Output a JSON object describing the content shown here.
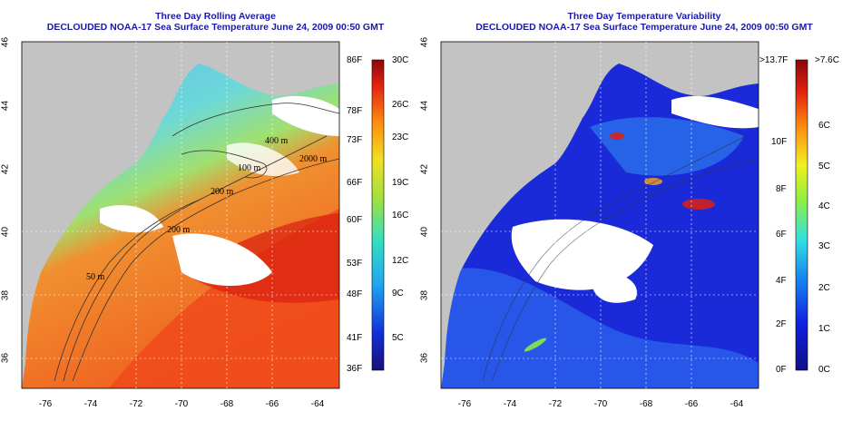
{
  "left": {
    "title1": "Three Day Rolling Average",
    "title2": "DECLOUDED NOAA-17 Sea Surface Temperature June 24, 2009 00:50 GMT",
    "lat_ticks": [
      "46",
      "44",
      "42",
      "40",
      "38",
      "36"
    ],
    "lon_ticks": [
      "-76",
      "-74",
      "-72",
      "-70",
      "-68",
      "-66",
      "-64"
    ],
    "contours": [
      "400 m",
      "100 m",
      "2000 m",
      "200 m",
      "200 m",
      "50 m"
    ],
    "colorbar_left": [
      "86F",
      "78F",
      "73F",
      "66F",
      "60F",
      "53F",
      "48F",
      "41F",
      "36F"
    ],
    "colorbar_right": [
      "30C",
      "26C",
      "23C",
      "19C",
      "16C",
      "12C",
      "9C",
      "5C"
    ]
  },
  "right": {
    "title1": "Three Day Temperature Variability",
    "title2": "DECLOUDED NOAA-17 Sea Surface Temperature June 24, 2009 00:50 GMT",
    "lat_ticks": [
      "46",
      "44",
      "42",
      "40",
      "38",
      "36"
    ],
    "lon_ticks": [
      "-76",
      "-74",
      "-72",
      "-70",
      "-68",
      "-66",
      "-64"
    ],
    "colorbar_left": [
      ">13.7F",
      "10F",
      "8F",
      "6F",
      "4F",
      "2F",
      "0F"
    ],
    "colorbar_right": [
      ">7.6C",
      "6C",
      "5C",
      "4C",
      "3C",
      "2C",
      "1C",
      "0C"
    ]
  },
  "colors": {
    "title": "#1a1aa8",
    "land": "#c3c3c3",
    "cloud_mask": "#ffffff"
  }
}
